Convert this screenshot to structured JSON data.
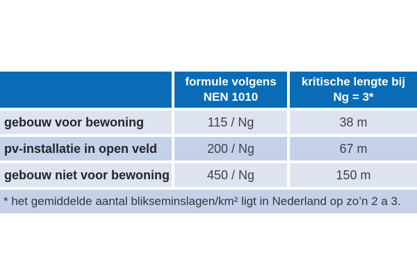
{
  "accent_colors": {
    "header_blue": "#0a6cb6",
    "row_light": "#dde4f0",
    "row_dark": "#c4d1e9"
  },
  "table": {
    "header": {
      "corner": "",
      "formula": "formule volgens\nNEN 1010",
      "critical": "kritische lengte bij\nNg = 3*"
    },
    "rows": [
      {
        "label": "gebouw voor bewoning",
        "formula": "115 / Ng",
        "length": "38 m"
      },
      {
        "label": "pv-installatie in open veld",
        "formula": "200 / Ng",
        "length": "67 m"
      },
      {
        "label": "gebouw niet voor bewoning",
        "formula": "450 / Ng",
        "length": "150 m"
      }
    ],
    "footnote": "* het gemiddelde aantal blikseminslagen/km² ligt in Nederland op zo’n 2 a 3."
  },
  "chart_data": {
    "type": "table",
    "title": "",
    "columns": [
      "",
      "formule volgens NEN 1010",
      "kritische lengte bij Ng = 3*"
    ],
    "rows": [
      [
        "gebouw voor bewoning",
        "115 / Ng",
        "38 m"
      ],
      [
        "pv-installatie in open veld",
        "200 / Ng",
        "67 m"
      ],
      [
        "gebouw niet voor bewoning",
        "450 / Ng",
        "150 m"
      ]
    ],
    "footnote": "* het gemiddelde aantal blikseminslagen/km² ligt in Nederland op zo’n 2 a 3."
  }
}
